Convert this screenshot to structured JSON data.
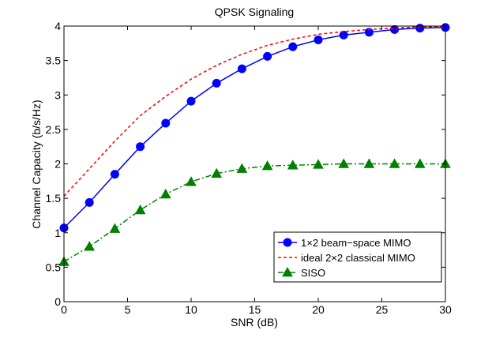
{
  "chart_data": {
    "type": "line",
    "title": "QPSK Signaling",
    "xlabel": "SNR (dB)",
    "ylabel": "Channel Capacity (b/s/Hz)",
    "xlim": [
      0,
      30
    ],
    "ylim": [
      0,
      4
    ],
    "xticks": [
      0,
      5,
      10,
      15,
      20,
      25,
      30
    ],
    "yticks": [
      0,
      0.5,
      1,
      1.5,
      2,
      2.5,
      3,
      3.5,
      4
    ],
    "xtick_labels": [
      "0",
      "5",
      "10",
      "15",
      "20",
      "25",
      "30"
    ],
    "ytick_labels": [
      "0",
      "0.5",
      "1",
      "1.5",
      "2",
      "2.5",
      "3",
      "3.5",
      "4"
    ],
    "grid": false,
    "legend_position": "lower-right",
    "series": [
      {
        "name": "1×2 beam−space MIMO",
        "color": "#0000ff",
        "line_style": "solid",
        "marker": "circle",
        "x": [
          0,
          2,
          4,
          6,
          8,
          10,
          12,
          14,
          16,
          18,
          20,
          22,
          24,
          26,
          28,
          30
        ],
        "values": [
          1.07,
          1.44,
          1.85,
          2.25,
          2.59,
          2.91,
          3.17,
          3.38,
          3.56,
          3.7,
          3.8,
          3.87,
          3.91,
          3.95,
          3.97,
          3.98
        ]
      },
      {
        "name": "ideal 2×2 classical MIMO",
        "color": "#ff0000",
        "line_style": "dashed",
        "marker": "none",
        "x": [
          0,
          2,
          4,
          6,
          8,
          10,
          12,
          14,
          16,
          18,
          20,
          22,
          24,
          26,
          28,
          30
        ],
        "values": [
          1.53,
          1.93,
          2.33,
          2.7,
          2.98,
          3.23,
          3.43,
          3.59,
          3.72,
          3.81,
          3.88,
          3.92,
          3.95,
          3.97,
          3.99,
          3.99
        ]
      },
      {
        "name": "SISO",
        "color": "#008000",
        "line_style": "dashdot",
        "marker": "triangle",
        "x": [
          0,
          2,
          4,
          6,
          8,
          10,
          12,
          14,
          16,
          18,
          20,
          22,
          24,
          26,
          28,
          30
        ],
        "values": [
          0.58,
          0.8,
          1.06,
          1.33,
          1.56,
          1.74,
          1.86,
          1.93,
          1.97,
          1.98,
          1.99,
          2.0,
          2.0,
          2.0,
          2.0,
          2.0
        ]
      }
    ]
  }
}
